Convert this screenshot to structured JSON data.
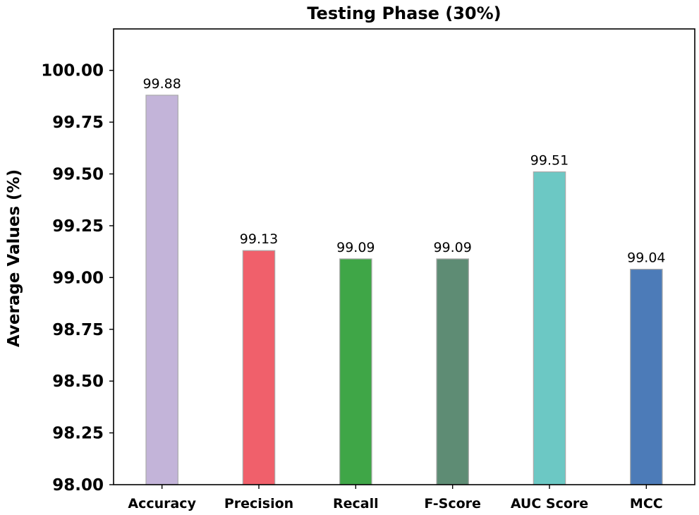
{
  "chart_data": {
    "type": "bar",
    "title": "Testing Phase (30%)",
    "xlabel": "",
    "ylabel": "Average Values (%)",
    "ylim": [
      98.0,
      100.2
    ],
    "yticks": [
      "98.00",
      "98.25",
      "98.50",
      "98.75",
      "99.00",
      "99.25",
      "99.50",
      "99.75",
      "100.00"
    ],
    "categories": [
      "Accuracy",
      "Precision",
      "Recall",
      "F-Score",
      "AUC Score",
      "MCC"
    ],
    "values": [
      99.88,
      99.13,
      99.09,
      99.09,
      99.51,
      99.04
    ],
    "value_labels": [
      "99.88",
      "99.13",
      "99.09",
      "99.09",
      "99.51",
      "99.04"
    ],
    "colors": [
      "#c3b4d9",
      "#f0606b",
      "#3fa647",
      "#5e8c74",
      "#6cc8c4",
      "#4c7bb8"
    ],
    "grid": false
  }
}
